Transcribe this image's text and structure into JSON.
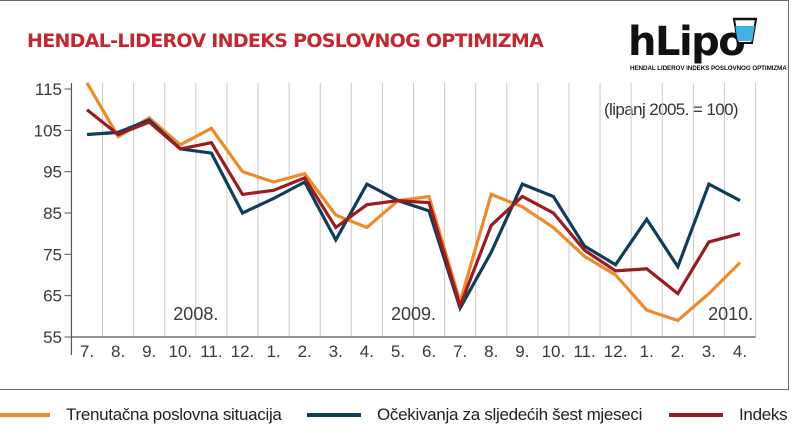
{
  "title": "HENDAL-LIDEROV INDEKS POSLOVNOG OPTIMIZMA",
  "logo": {
    "word": "hLipo",
    "subtitle": "HENDAL LIDEROV INDEKS   POSLOVNOG OPTIMIZMA"
  },
  "note": "(lipanj 2005. = 100)",
  "colors": {
    "title": "#c3272f",
    "trenutacna": "#ee8a2a",
    "ocekivanja": "#0f3d57",
    "indeks": "#9b1b23",
    "grid": "#c9c9c9"
  },
  "chart_data": {
    "type": "line",
    "categories": [
      "7.",
      "8.",
      "9.",
      "10.",
      "11.",
      "12.",
      "1.",
      "2.",
      "3.",
      "4.",
      "5.",
      "6.",
      "7.",
      "8.",
      "9.",
      "10.",
      "11.",
      "12.",
      "1.",
      "2.",
      "3.",
      "4."
    ],
    "years": [
      {
        "label": "2008.",
        "at_index": 3.5
      },
      {
        "label": "2009.",
        "at_index": 10.5
      },
      {
        "label": "2010.",
        "at_index": 20.7
      }
    ],
    "ylim": [
      55,
      115
    ],
    "yticks": [
      55,
      65,
      75,
      85,
      95,
      105,
      115
    ],
    "grid": "vertical",
    "legend_position": "bottom",
    "series": [
      {
        "name": "Trenutačna poslovna situacija",
        "color": "#ee8a2a",
        "values": [
          116.5,
          103.5,
          108,
          101.5,
          105.5,
          95,
          92.5,
          94.5,
          84.5,
          81.5,
          88,
          89,
          63.5,
          89.5,
          86.5,
          81.5,
          74.5,
          70,
          61.5,
          59,
          65.5,
          73
        ]
      },
      {
        "name": "Očekivanja za sljedećih šest mjeseci",
        "color": "#0f3d57",
        "values": [
          104,
          104.5,
          107.5,
          100.5,
          99.5,
          85,
          88.5,
          92.5,
          78.5,
          92,
          88,
          85.5,
          62,
          75.5,
          92,
          89,
          77,
          72.5,
          83.5,
          72,
          92,
          88
        ]
      },
      {
        "name": "Indeks",
        "color": "#9b1b23",
        "values": [
          110,
          104,
          107,
          100.5,
          102,
          89.5,
          90.5,
          93.5,
          81.5,
          87,
          88,
          87.5,
          62.5,
          82,
          89,
          85,
          76,
          71,
          71.5,
          65.5,
          78,
          80
        ]
      }
    ]
  }
}
